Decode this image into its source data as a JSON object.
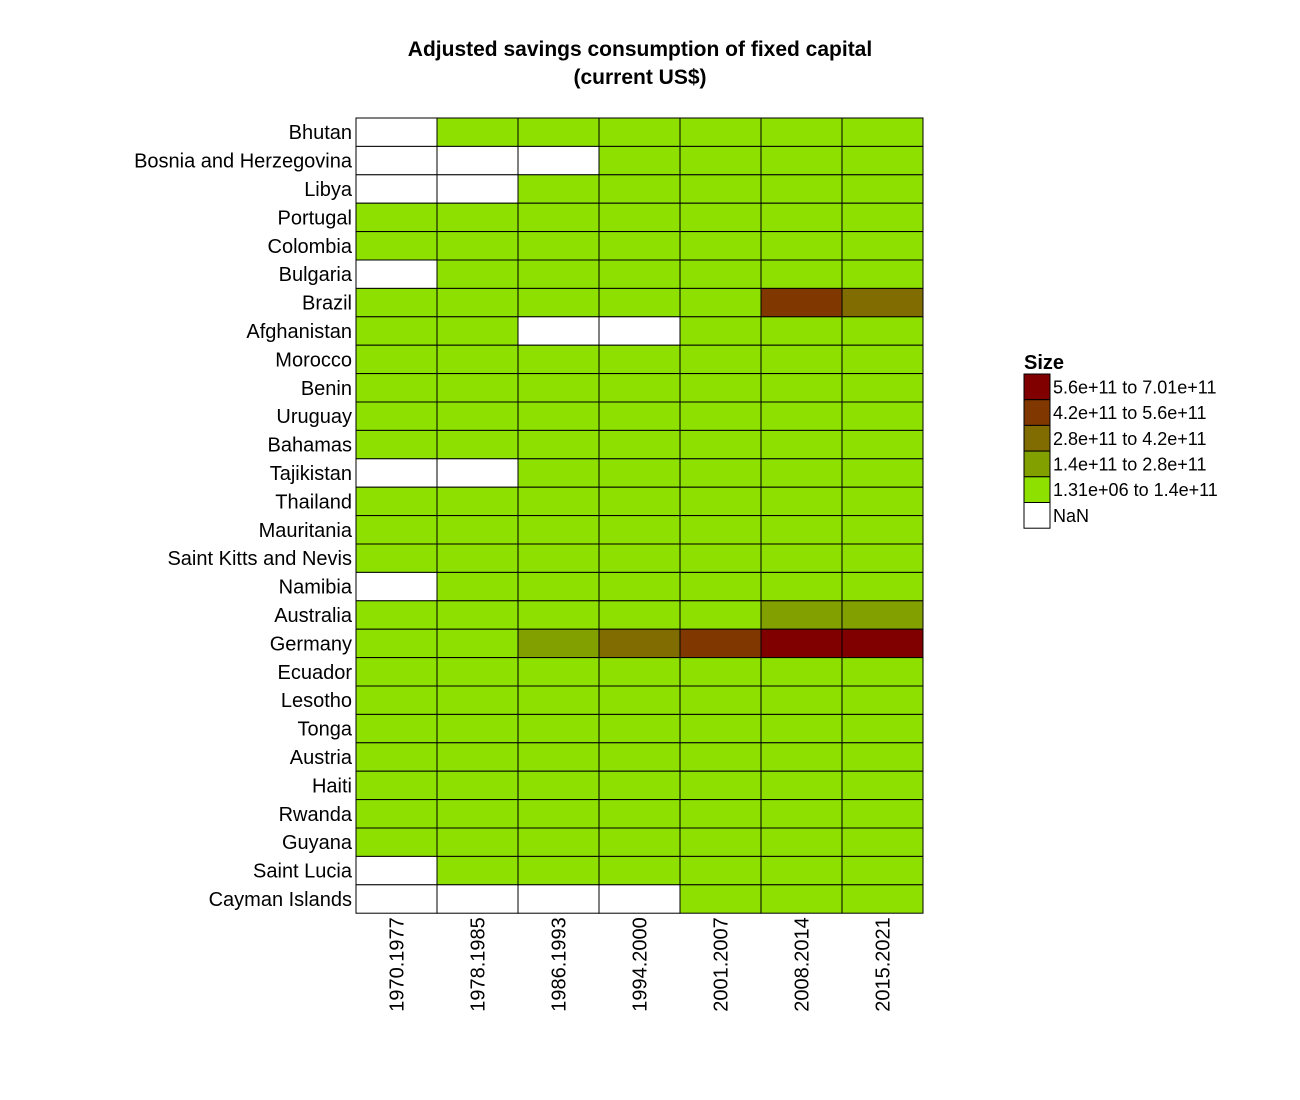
{
  "chart_data": {
    "type": "heatmap",
    "title_lines": [
      "Adjusted savings consumption of fixed capital",
      "(current US$)"
    ],
    "x_categories": [
      "1970.1977",
      "1978.1985",
      "1986.1993",
      "1994.2000",
      "2001.2007",
      "2008.2014",
      "2015.2021"
    ],
    "y_categories": [
      "Bhutan",
      "Bosnia and Herzegovina",
      "Libya",
      "Portugal",
      "Colombia",
      "Bulgaria",
      "Brazil",
      "Afghanistan",
      "Morocco",
      "Benin",
      "Uruguay",
      "Bahamas",
      "Tajikistan",
      "Thailand",
      "Mauritania",
      "Saint Kitts and Nevis",
      "Namibia",
      "Australia",
      "Germany",
      "Ecuador",
      "Lesotho",
      "Tonga",
      "Austria",
      "Haiti",
      "Rwanda",
      "Guyana",
      "Saint Lucia",
      "Cayman Islands"
    ],
    "bins": [
      {
        "label": "5.6e+11 to 7.01e+11",
        "color": "#800000"
      },
      {
        "label": "4.2e+11 to 5.6e+11",
        "color": "#803800"
      },
      {
        "label": "2.8e+11 to 4.2e+11",
        "color": "#806c00"
      },
      {
        "label": "1.4e+11 to 2.8e+11",
        "color": "#82a000"
      },
      {
        "label": "1.31e+06 to 1.4e+11",
        "color": "#8ee000"
      },
      {
        "label": "NaN",
        "color": "#ffffff"
      }
    ],
    "cells": [
      [
        5,
        4,
        4,
        4,
        4,
        4,
        4
      ],
      [
        5,
        5,
        5,
        4,
        4,
        4,
        4
      ],
      [
        5,
        5,
        4,
        4,
        4,
        4,
        4
      ],
      [
        4,
        4,
        4,
        4,
        4,
        4,
        4
      ],
      [
        4,
        4,
        4,
        4,
        4,
        4,
        4
      ],
      [
        5,
        4,
        4,
        4,
        4,
        4,
        4
      ],
      [
        4,
        4,
        4,
        4,
        4,
        1,
        2
      ],
      [
        4,
        4,
        5,
        5,
        4,
        4,
        4
      ],
      [
        4,
        4,
        4,
        4,
        4,
        4,
        4
      ],
      [
        4,
        4,
        4,
        4,
        4,
        4,
        4
      ],
      [
        4,
        4,
        4,
        4,
        4,
        4,
        4
      ],
      [
        4,
        4,
        4,
        4,
        4,
        4,
        4
      ],
      [
        5,
        5,
        4,
        4,
        4,
        4,
        4
      ],
      [
        4,
        4,
        4,
        4,
        4,
        4,
        4
      ],
      [
        4,
        4,
        4,
        4,
        4,
        4,
        4
      ],
      [
        4,
        4,
        4,
        4,
        4,
        4,
        4
      ],
      [
        5,
        4,
        4,
        4,
        4,
        4,
        4
      ],
      [
        4,
        4,
        4,
        4,
        4,
        3,
        3
      ],
      [
        4,
        4,
        3,
        2,
        1,
        0,
        0
      ],
      [
        4,
        4,
        4,
        4,
        4,
        4,
        4
      ],
      [
        4,
        4,
        4,
        4,
        4,
        4,
        4
      ],
      [
        4,
        4,
        4,
        4,
        4,
        4,
        4
      ],
      [
        4,
        4,
        4,
        4,
        4,
        4,
        4
      ],
      [
        4,
        4,
        4,
        4,
        4,
        4,
        4
      ],
      [
        4,
        4,
        4,
        4,
        4,
        4,
        4
      ],
      [
        4,
        4,
        4,
        4,
        4,
        4,
        4
      ],
      [
        5,
        4,
        4,
        4,
        4,
        4,
        4
      ],
      [
        5,
        5,
        5,
        5,
        4,
        4,
        4
      ]
    ],
    "legend": {
      "title": "Size",
      "position": "right"
    }
  }
}
